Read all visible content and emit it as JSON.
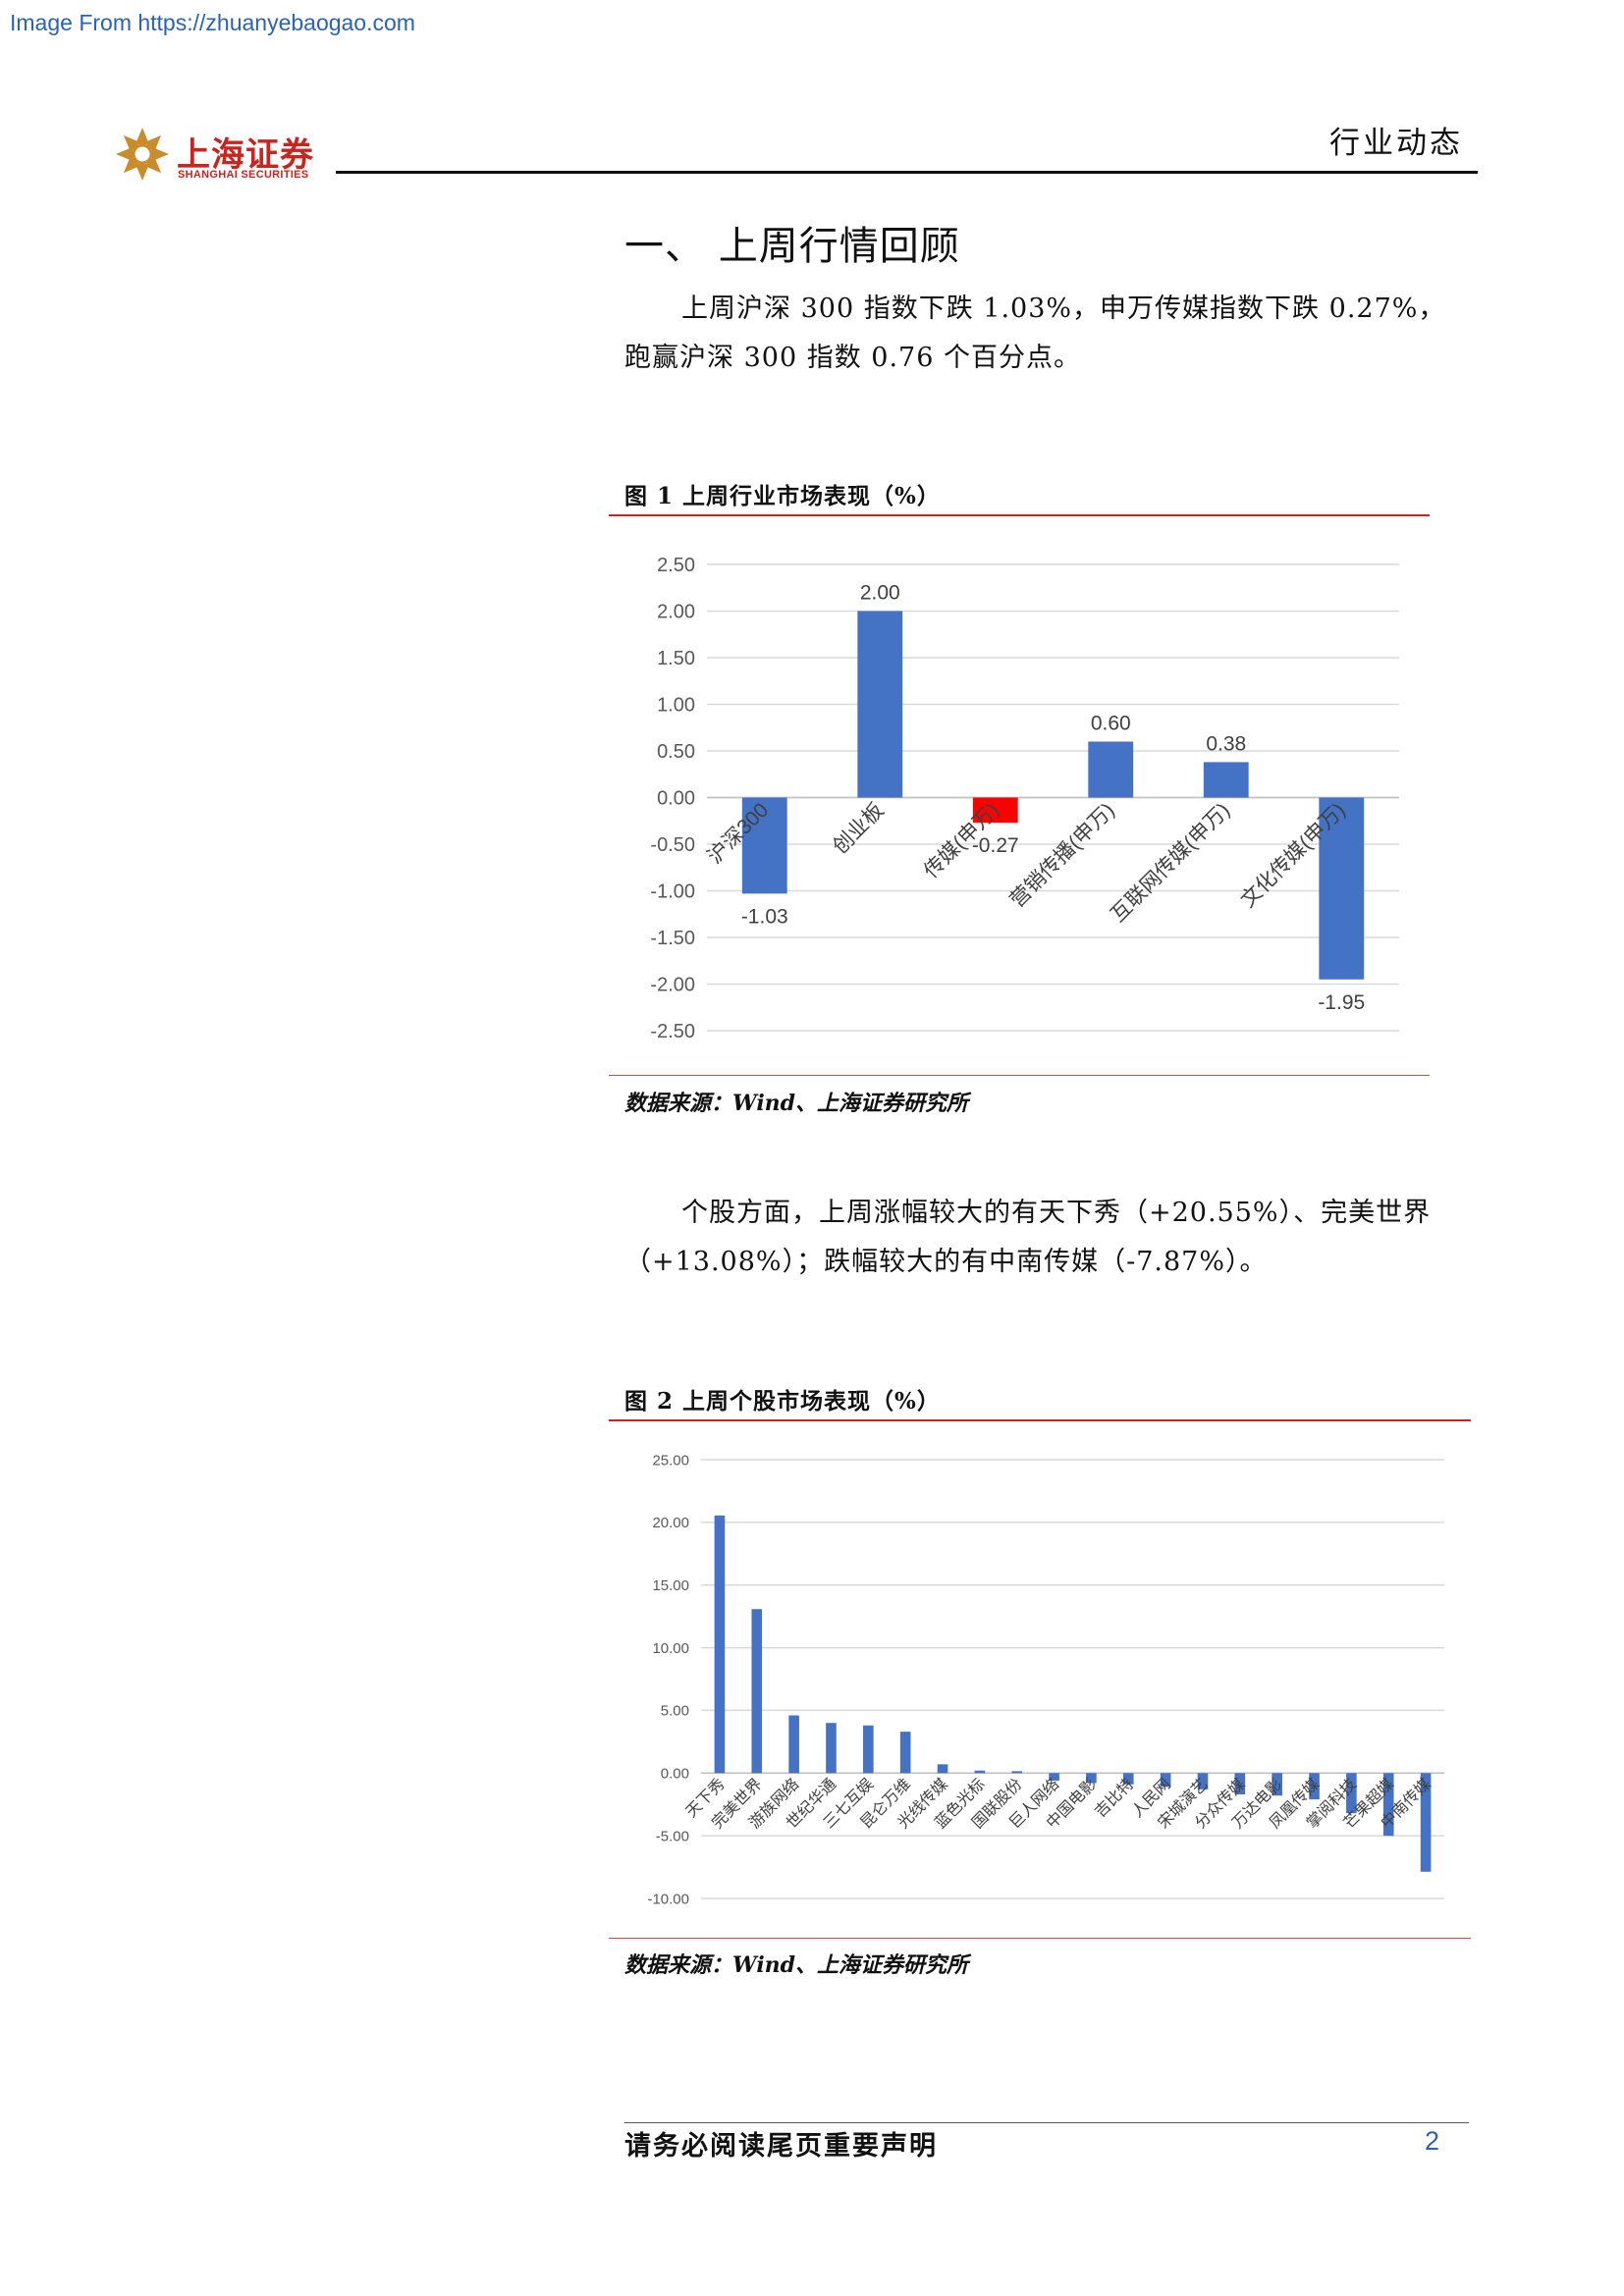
{
  "watermark": "Image From https://zhuanyebaogao.com",
  "header": {
    "logo_name": "上海证券",
    "logo_sub": "SHANGHAI SECURITIES",
    "report_type": "行业动态"
  },
  "section": {
    "title": "一、 上周行情回顾"
  },
  "para1": "上周沪深 300 指数下跌 1.03%，申万传媒指数下跌 0.27%，跑赢沪深 300 指数 0.76 个百分点。",
  "fig1": {
    "title": "图 1 上周行业市场表现（%）",
    "source": "数据来源：Wind、上海证券研究所"
  },
  "para2": "个股方面，上周涨幅较大的有天下秀（+20.55%）、完美世界（+13.08%）；跌幅较大的有中南传媒（-7.87%）。",
  "fig2": {
    "title": "图 2 上周个股市场表现（%）",
    "source": "数据来源：Wind、上海证券研究所"
  },
  "footer": {
    "notice": "请务必阅读尾页重要声明",
    "page": "2"
  },
  "chart_data": [
    {
      "type": "bar",
      "title": "",
      "categories": [
        "沪深300",
        "创业板",
        "传媒(申万)",
        "营销传播(申万)",
        "互联网传媒(申万)",
        "文化传媒(申万)"
      ],
      "values": [
        -1.03,
        2.0,
        -0.27,
        0.6,
        0.38,
        -1.95
      ],
      "data_labels": [
        "-1.03",
        "2.00",
        "-0.27",
        "0.60",
        "0.38",
        "-1.95"
      ],
      "highlight_index": 2,
      "ylim": [
        -2.5,
        2.5
      ],
      "yticks": [
        2.5,
        2.0,
        1.5,
        1.0,
        0.5,
        0.0,
        -0.5,
        -1.0,
        -1.5,
        -2.0,
        -2.5
      ],
      "ytick_labels": [
        "2.50",
        "2.00",
        "1.50",
        "1.00",
        "0.50",
        "0.00",
        "-0.50",
        "-1.00",
        "-1.50",
        "-2.00",
        "-2.50"
      ],
      "grid": true,
      "colors": {
        "bar": "#4472c4",
        "highlight": "#ff0000",
        "grid": "#d9d9d9"
      }
    },
    {
      "type": "bar",
      "title": "",
      "categories": [
        "天下秀",
        "完美世界",
        "游族网络",
        "世纪华通",
        "三七互娱",
        "昆仑万维",
        "光线传媒",
        "蓝色光标",
        "国联股份",
        "巨人网络",
        "中国电影",
        "吉比特",
        "人民网",
        "宋城演艺",
        "分众传媒",
        "万达电影",
        "凤凰传媒",
        "掌阅科技",
        "芒果超媒",
        "中南传媒"
      ],
      "values": [
        20.55,
        13.08,
        4.6,
        4.0,
        3.8,
        3.3,
        0.7,
        0.2,
        0.15,
        -0.6,
        -0.8,
        -0.9,
        -1.1,
        -1.3,
        -1.7,
        -1.8,
        -2.1,
        -3.2,
        -5.0,
        -7.87
      ],
      "ylim": [
        -10,
        25
      ],
      "yticks": [
        25,
        20,
        15,
        10,
        5,
        0,
        -5,
        -10
      ],
      "ytick_labels": [
        "25.00",
        "20.00",
        "15.00",
        "10.00",
        "5.00",
        "0.00",
        "-5.00",
        "-10.00"
      ],
      "grid": true,
      "colors": {
        "bar": "#4472c4",
        "grid": "#d9d9d9"
      }
    }
  ]
}
